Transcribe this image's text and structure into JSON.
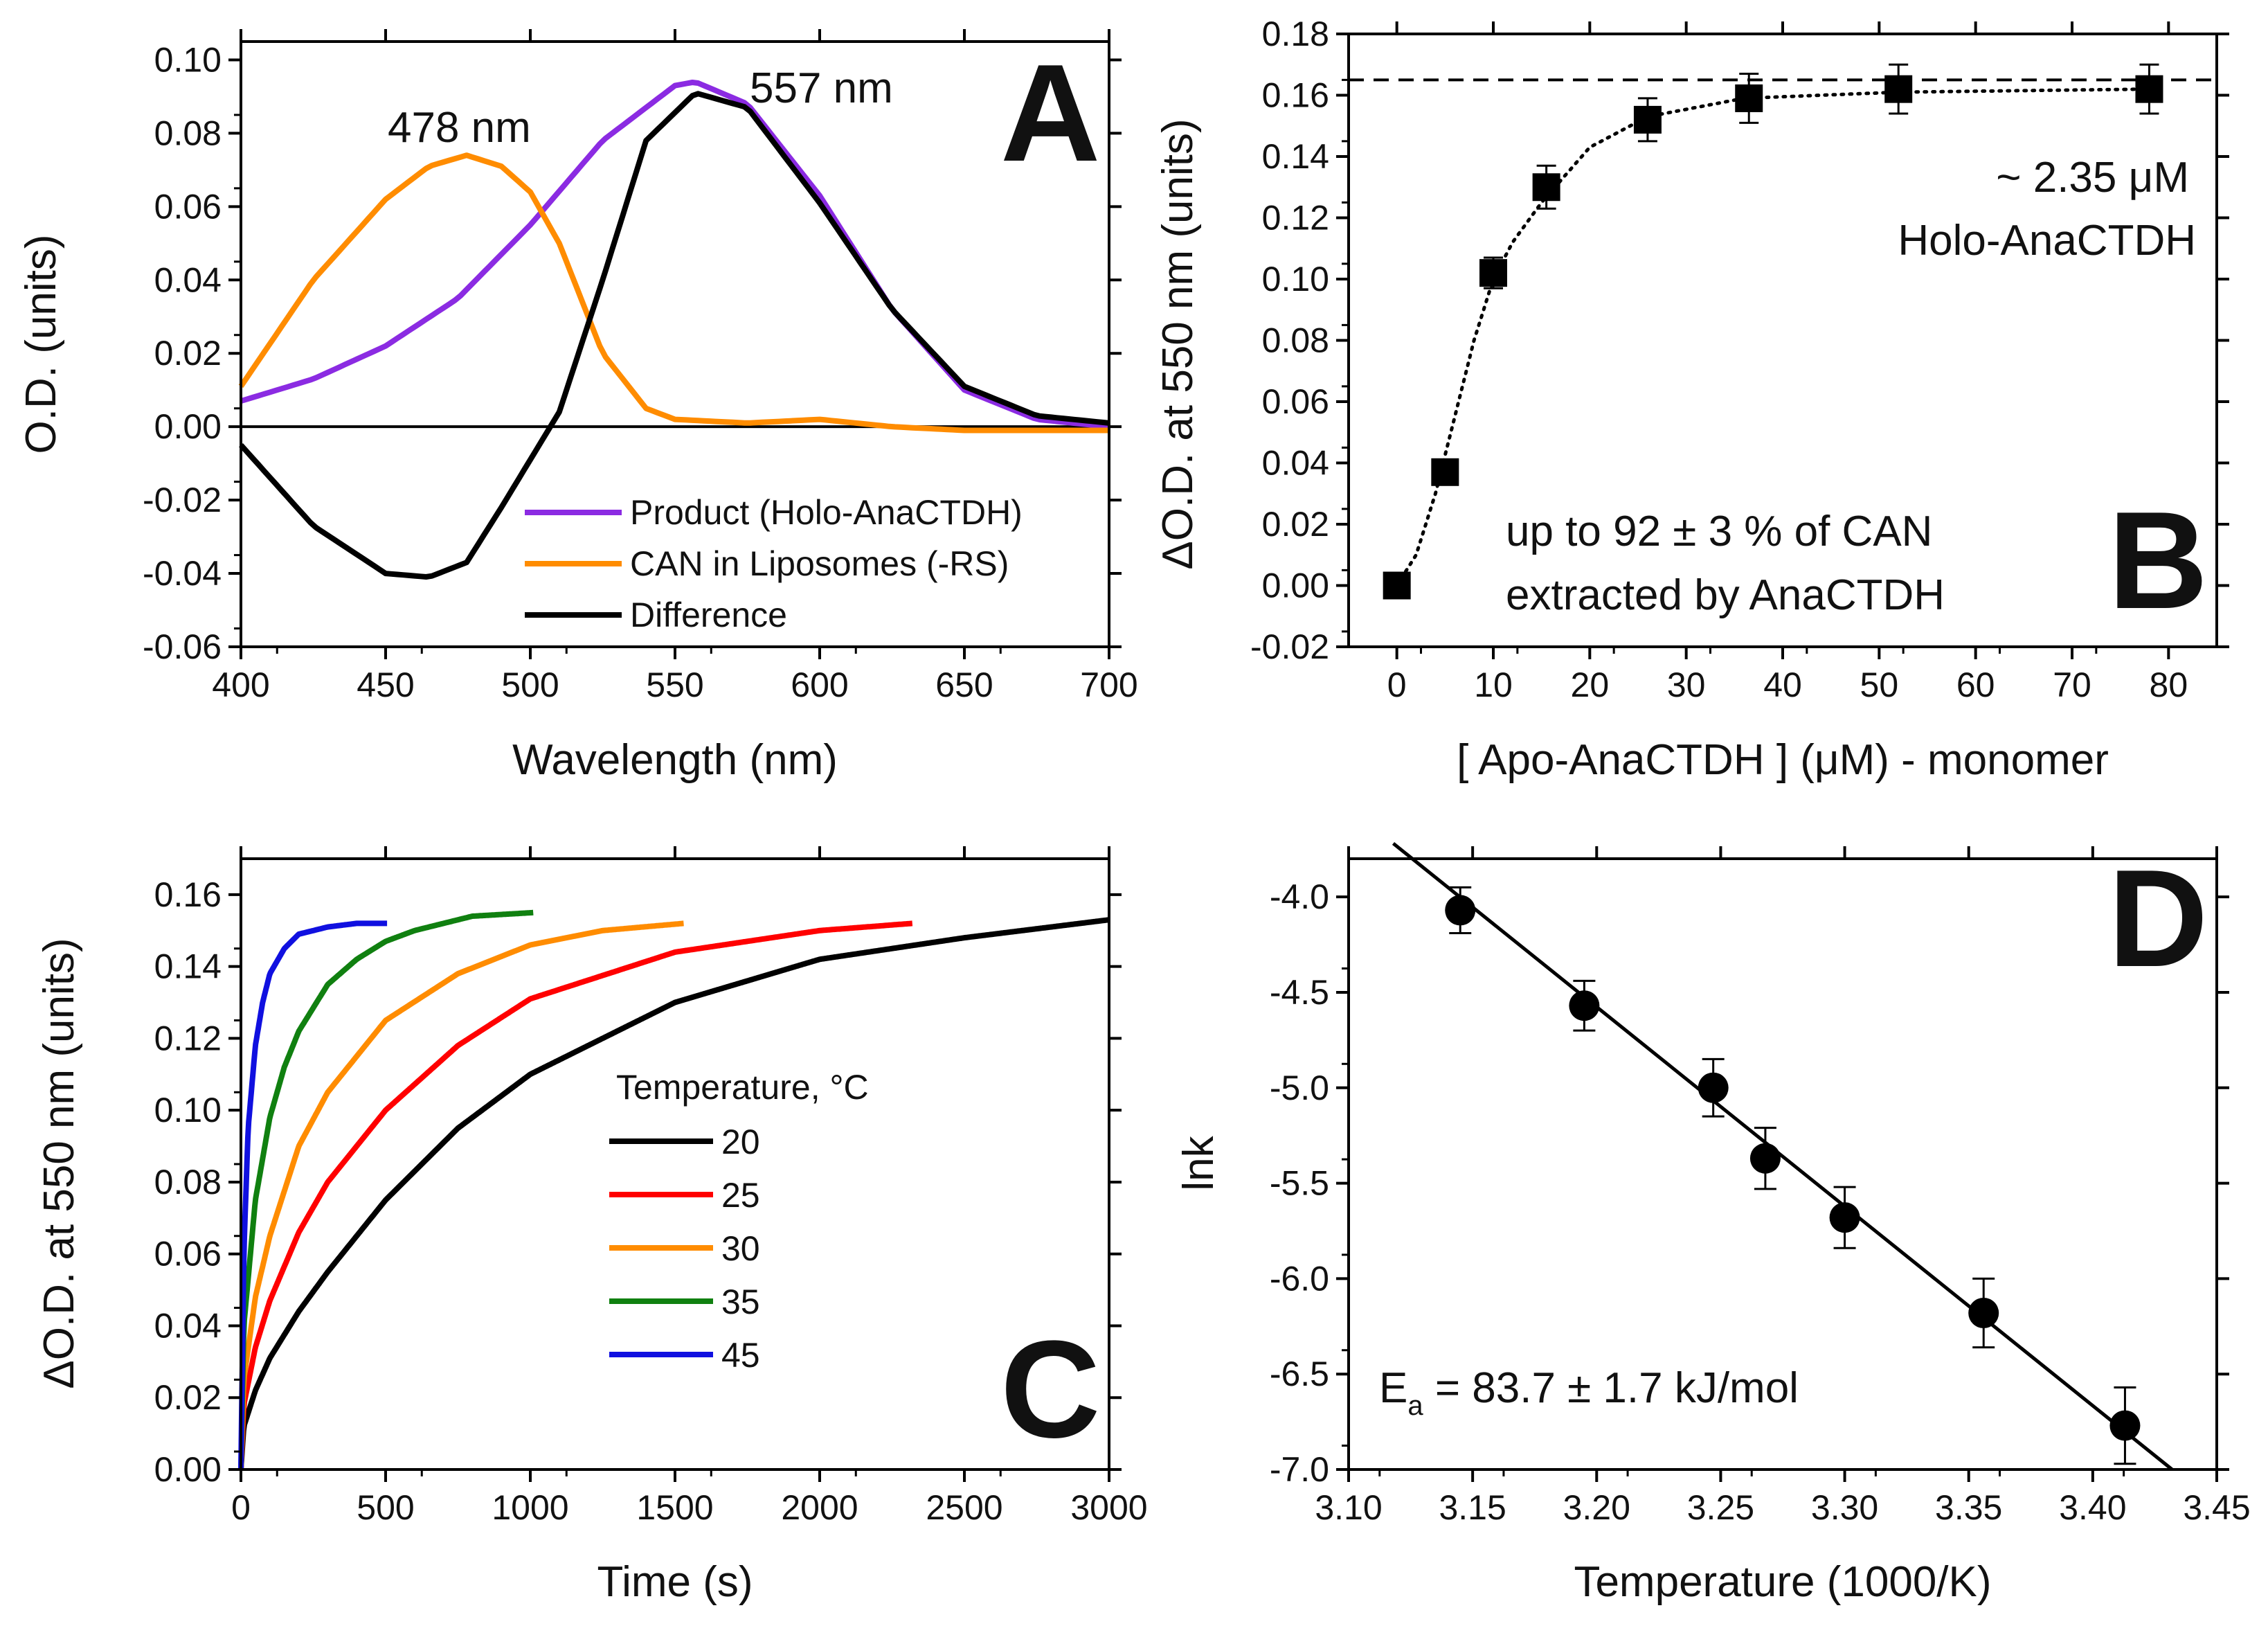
{
  "chart_data": [
    {
      "panel": "A",
      "type": "line",
      "xlabel": "Wavelength (nm)",
      "ylabel": "O.D. (units)",
      "xlim": [
        400,
        700
      ],
      "ylim": [
        -0.06,
        0.105
      ],
      "xticks": [
        400,
        450,
        500,
        550,
        600,
        650,
        700
      ],
      "yticks": [
        -0.06,
        -0.04,
        -0.02,
        0.0,
        0.02,
        0.04,
        0.06,
        0.08,
        0.1
      ],
      "ytick_labels": [
        "-0.06",
        "-0.04",
        "-0.02",
        "0.00",
        "0.02",
        "0.04",
        "0.06",
        "0.08",
        "0.10"
      ],
      "zero_line": true,
      "annotations": [
        "478 nm",
        "557 nm"
      ],
      "legend_position": "bottom-right",
      "series": [
        {
          "name": "Product (Holo-AnaCTDH)",
          "color": "#8B2BE2",
          "x": [
            400,
            425,
            450,
            475,
            500,
            525,
            550,
            557,
            575,
            600,
            625,
            650,
            675,
            700
          ],
          "y": [
            0.007,
            0.013,
            0.022,
            0.035,
            0.055,
            0.078,
            0.093,
            0.094,
            0.088,
            0.063,
            0.032,
            0.01,
            0.002,
            0.0
          ]
        },
        {
          "name": "CAN in Liposomes (-RS)",
          "color": "#FF8C00",
          "x": [
            400,
            425,
            450,
            465,
            478,
            490,
            500,
            510,
            525,
            540,
            550,
            575,
            600,
            625,
            650,
            675,
            700
          ],
          "y": [
            0.011,
            0.04,
            0.062,
            0.071,
            0.074,
            0.071,
            0.064,
            0.05,
            0.02,
            0.005,
            0.002,
            0.001,
            0.002,
            0.0,
            -0.001,
            -0.001,
            -0.001
          ]
        },
        {
          "name": "Difference",
          "color": "#000000",
          "x": [
            400,
            425,
            450,
            465,
            478,
            490,
            500,
            510,
            525,
            540,
            557,
            575,
            600,
            625,
            650,
            675,
            700
          ],
          "y": [
            -0.005,
            -0.027,
            -0.04,
            -0.041,
            -0.037,
            -0.022,
            -0.009,
            0.004,
            0.04,
            0.078,
            0.091,
            0.087,
            0.061,
            0.032,
            0.011,
            0.003,
            0.001
          ]
        }
      ]
    },
    {
      "panel": "B",
      "type": "scatter",
      "xlabel": "[ Apo-AnaCTDH ] (μM) - monomer",
      "ylabel": "ΔO.D. at 550 nm (units)",
      "xlim": [
        -5,
        85
      ],
      "ylim": [
        -0.02,
        0.18
      ],
      "xticks": [
        0,
        10,
        20,
        30,
        40,
        50,
        60,
        70,
        80
      ],
      "yticks": [
        -0.02,
        0.0,
        0.02,
        0.04,
        0.06,
        0.08,
        0.1,
        0.12,
        0.14,
        0.16,
        0.18
      ],
      "ytick_labels": [
        "-0.02",
        "0.00",
        "0.02",
        "0.04",
        "0.06",
        "0.08",
        "0.10",
        "0.12",
        "0.14",
        "0.16",
        "0.18"
      ],
      "dashed_hline": 0.165,
      "annotations": [
        "~ 2.35 μM",
        "Holo-AnaCTDH",
        "up to 92 ± 3 % of CAN",
        "extracted by AnaCTDH"
      ],
      "points": {
        "x": [
          0,
          5,
          10,
          15.5,
          26,
          36.5,
          52,
          78
        ],
        "y": [
          0.0,
          0.037,
          0.102,
          0.13,
          0.152,
          0.159,
          0.162,
          0.162
        ],
        "err": [
          0.0,
          0.003,
          0.005,
          0.007,
          0.007,
          0.008,
          0.008,
          0.008
        ]
      },
      "fit": {
        "x": [
          0,
          2,
          4,
          6,
          8,
          10,
          12,
          15,
          20,
          26,
          36,
          52,
          78
        ],
        "y": [
          0.0,
          0.01,
          0.03,
          0.055,
          0.08,
          0.1,
          0.112,
          0.125,
          0.143,
          0.153,
          0.159,
          0.161,
          0.162
        ]
      }
    },
    {
      "panel": "C",
      "type": "line",
      "xlabel": "Time (s)",
      "ylabel": "ΔO.D. at 550 nm (units)",
      "xlim": [
        0,
        3000
      ],
      "ylim": [
        0,
        0.17
      ],
      "xticks": [
        0,
        500,
        1000,
        1500,
        2000,
        2500,
        3000
      ],
      "yticks": [
        0.0,
        0.02,
        0.04,
        0.06,
        0.08,
        0.1,
        0.12,
        0.14,
        0.16
      ],
      "ytick_labels": [
        "0.00",
        "0.02",
        "0.04",
        "0.06",
        "0.08",
        "0.10",
        "0.12",
        "0.14",
        "0.16"
      ],
      "legend_title": "Temperature, °C",
      "legend_position": "center",
      "series": [
        {
          "name": "20",
          "color": "#000000",
          "xmax": 3000,
          "x": [
            0,
            10,
            50,
            100,
            200,
            300,
            500,
            750,
            1000,
            1500,
            2000,
            2500,
            3000
          ],
          "y": [
            0.0,
            0.012,
            0.022,
            0.031,
            0.044,
            0.055,
            0.075,
            0.095,
            0.11,
            0.13,
            0.142,
            0.148,
            0.153
          ]
        },
        {
          "name": "25",
          "color": "#FF0000",
          "xmax": 2320,
          "x": [
            0,
            10,
            50,
            100,
            200,
            300,
            500,
            750,
            1000,
            1500,
            2000,
            2320
          ],
          "y": [
            0.0,
            0.018,
            0.034,
            0.047,
            0.066,
            0.08,
            0.1,
            0.118,
            0.131,
            0.144,
            0.15,
            0.152
          ]
        },
        {
          "name": "30",
          "color": "#FF8C00",
          "xmax": 1530,
          "x": [
            0,
            10,
            50,
            100,
            200,
            300,
            500,
            750,
            1000,
            1250,
            1530
          ],
          "y": [
            0.0,
            0.025,
            0.048,
            0.065,
            0.09,
            0.105,
            0.125,
            0.138,
            0.146,
            0.15,
            0.152
          ]
        },
        {
          "name": "35",
          "color": "#108010",
          "xmax": 1010,
          "x": [
            0,
            10,
            50,
            100,
            150,
            200,
            300,
            400,
            500,
            600,
            800,
            1010
          ],
          "y": [
            0.0,
            0.04,
            0.075,
            0.098,
            0.112,
            0.122,
            0.135,
            0.142,
            0.147,
            0.15,
            0.154,
            0.155
          ]
        },
        {
          "name": "45",
          "color": "#1010E0",
          "xmax": 505,
          "x": [
            0,
            10,
            25,
            50,
            75,
            100,
            150,
            200,
            300,
            400,
            505
          ],
          "y": [
            0.0,
            0.06,
            0.095,
            0.118,
            0.13,
            0.138,
            0.145,
            0.149,
            0.151,
            0.152,
            0.152
          ]
        }
      ]
    },
    {
      "panel": "D",
      "type": "scatter",
      "xlabel": "Temperature (1000/K)",
      "ylabel": "lnk",
      "xlim": [
        3.1,
        3.45
      ],
      "ylim": [
        -7.0,
        -3.8
      ],
      "xticks": [
        3.1,
        3.15,
        3.2,
        3.25,
        3.3,
        3.35,
        3.4,
        3.45
      ],
      "xtick_labels": [
        "3.10",
        "3.15",
        "3.20",
        "3.25",
        "3.30",
        "3.35",
        "3.40",
        "3.45"
      ],
      "yticks": [
        -7.0,
        -6.5,
        -6.0,
        -5.5,
        -5.0,
        -4.5,
        -4.0
      ],
      "ytick_labels": [
        "-7.0",
        "-6.5",
        "-6.0",
        "-5.5",
        "-5.0",
        "-4.5",
        "-4.0"
      ],
      "annotation": "E",
      "annotation_sub": "a",
      "annotation_rest": " = 83.7 ± 1.7 kJ/mol",
      "points": {
        "x": [
          3.145,
          3.195,
          3.247,
          3.268,
          3.3,
          3.356,
          3.413
        ],
        "y": [
          -4.07,
          -4.57,
          -5.0,
          -5.37,
          -5.68,
          -6.18,
          -6.77
        ],
        "err": [
          0.12,
          0.13,
          0.15,
          0.16,
          0.16,
          0.18,
          0.2
        ]
      },
      "fit": {
        "x": [
          3.118,
          3.432
        ],
        "y": [
          -3.72,
          -7.0
        ]
      }
    }
  ]
}
